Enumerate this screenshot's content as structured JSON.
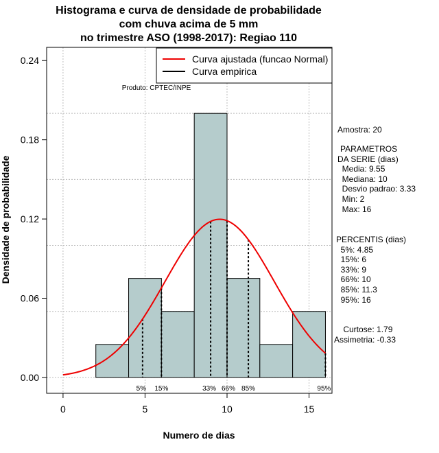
{
  "chart_data": {
    "type": "bar",
    "title_lines": [
      "Histograma e curva de densidade de probabilidade",
      "com chuva acima de 5 mm",
      "no trimestre ASO (1998-2017): Regiao 110"
    ],
    "xlabel": "Numero de dias",
    "ylabel": "Densidade de probabilidade",
    "xlim": [
      -1,
      16.4
    ],
    "ylim": [
      -0.012,
      0.25
    ],
    "x_ticks": [
      0,
      5,
      10,
      15
    ],
    "x_tick_labels": [
      "0",
      "5",
      "10",
      "15"
    ],
    "y_ticks": [
      0.0,
      0.06,
      0.12,
      0.18,
      0.24
    ],
    "y_tick_labels": [
      "0.00",
      "0.06",
      "0.12",
      "0.18",
      "0.24"
    ],
    "grid_x": [
      0,
      5,
      10,
      15
    ],
    "grid_y": [
      0.0,
      0.05,
      0.1,
      0.15,
      0.2
    ],
    "bins": [
      {
        "start": 2,
        "end": 4,
        "density": 0.025
      },
      {
        "start": 4,
        "end": 6,
        "density": 0.075
      },
      {
        "start": 6,
        "end": 8,
        "density": 0.05
      },
      {
        "start": 8,
        "end": 10,
        "density": 0.2
      },
      {
        "start": 10,
        "end": 12,
        "density": 0.075
      },
      {
        "start": 12,
        "end": 14,
        "density": 0.025
      },
      {
        "start": 14,
        "end": 16,
        "density": 0.05
      }
    ],
    "normal_curve": {
      "mean": 9.55,
      "sd": 3.33,
      "x_from": 0,
      "x_to": 16,
      "color": "#ee0000"
    },
    "percentile_lines": [
      {
        "label": "5%",
        "value": 4.85
      },
      {
        "label": "15%",
        "value": 6
      },
      {
        "label": "33%",
        "value": 9
      },
      {
        "label": "66%",
        "value": 10
      },
      {
        "label": "85%",
        "value": 11.3
      },
      {
        "label": "95%",
        "value": 16
      }
    ],
    "legend": [
      {
        "label": "Curva ajustada (funcao Normal)",
        "color": "#ee0000"
      },
      {
        "label": "Curva empirica",
        "color": "#000000"
      }
    ],
    "legend_position": "top-right",
    "annotation": "Produto: CPTEC/INPE",
    "bar_color": "#b5cccc"
  },
  "stats_panel": {
    "amostra": "Amostra: 20",
    "parametros": [
      "PARAMETROS",
      "DA SERIE (dias)",
      "  Media: 9.55",
      "  Mediana: 10",
      "  Desvio padrao: 3.33",
      "  Min: 2",
      "  Max: 16"
    ],
    "percentis": [
      "PERCENTIS (dias)",
      "  5%: 4.85",
      "  15%: 6",
      "  33%: 9",
      "  66%: 10",
      "  85%: 11.3",
      "  95%: 16"
    ],
    "shape": [
      "    Curtose: 1.79",
      "Assimetria: -0.33"
    ]
  }
}
